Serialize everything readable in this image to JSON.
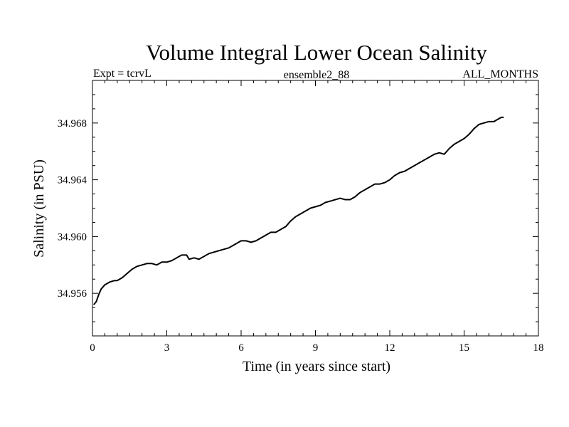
{
  "chart_data": {
    "type": "line",
    "title": "Volume Integral Lower Ocean Salinity",
    "subtitle_left": "Expt = tcrvL",
    "subtitle_center": "ensemble2_88",
    "subtitle_right": "ALL_MONTHS",
    "xlabel": "Time (in years since start)",
    "ylabel": "Salinity (in PSU)",
    "xlim": [
      0,
      18
    ],
    "ylim": [
      34.953,
      34.971
    ],
    "xticks": [
      0,
      3,
      6,
      9,
      12,
      15,
      18
    ],
    "xtick_labels": [
      "0",
      "3",
      "6",
      "9",
      "12",
      "15",
      "18"
    ],
    "yticks": [
      34.956,
      34.96,
      34.964,
      34.968
    ],
    "ytick_labels": [
      "34.956",
      "34.960",
      "34.964",
      "34.968"
    ],
    "grid": false,
    "legend": "none",
    "line_color": "#000000",
    "series": [
      {
        "x": [
          0.05,
          0.15,
          0.25,
          0.35,
          0.5,
          0.7,
          0.9,
          1.0,
          1.2,
          1.4,
          1.6,
          1.8,
          2.0,
          2.2,
          2.4,
          2.6,
          2.8,
          3.0,
          3.2,
          3.4,
          3.6,
          3.8,
          3.9,
          4.1,
          4.3,
          4.5,
          4.7,
          4.9,
          5.1,
          5.3,
          5.5,
          5.7,
          5.9,
          6.0,
          6.2,
          6.4,
          6.6,
          6.8,
          7.0,
          7.2,
          7.4,
          7.6,
          7.8,
          8.0,
          8.2,
          8.4,
          8.6,
          8.8,
          9.0,
          9.2,
          9.4,
          9.6,
          9.8,
          10.0,
          10.2,
          10.4,
          10.6,
          10.8,
          11.0,
          11.2,
          11.4,
          11.6,
          11.8,
          12.0,
          12.2,
          12.4,
          12.6,
          12.8,
          13.0,
          13.2,
          13.4,
          13.6,
          13.8,
          14.0,
          14.2,
          14.4,
          14.6,
          14.8,
          15.0,
          15.2,
          15.4,
          15.6,
          15.8,
          16.0,
          16.2,
          16.4,
          16.5,
          16.6
        ],
        "y": [
          34.9552,
          34.9554,
          34.9559,
          34.9563,
          34.9566,
          34.9568,
          34.9569,
          34.9569,
          34.9571,
          34.9574,
          34.9577,
          34.9579,
          34.958,
          34.9581,
          34.9581,
          34.958,
          34.9582,
          34.9582,
          34.9583,
          34.9585,
          34.9587,
          34.9587,
          34.9584,
          34.9585,
          34.9584,
          34.9586,
          34.9588,
          34.9589,
          34.959,
          34.9591,
          34.9592,
          34.9594,
          34.9596,
          34.9597,
          34.9597,
          34.9596,
          34.9597,
          34.9599,
          34.9601,
          34.9603,
          34.9603,
          34.9605,
          34.9607,
          34.9611,
          34.9614,
          34.9616,
          34.9618,
          34.962,
          34.9621,
          34.9622,
          34.9624,
          34.9625,
          34.9626,
          34.9627,
          34.9626,
          34.9626,
          34.9628,
          34.9631,
          34.9633,
          34.9635,
          34.9637,
          34.9637,
          34.9638,
          34.964,
          34.9643,
          34.9645,
          34.9646,
          34.9648,
          34.965,
          34.9652,
          34.9654,
          34.9656,
          34.9658,
          34.9659,
          34.9658,
          34.9662,
          34.9665,
          34.9667,
          34.9669,
          34.9672,
          34.9676,
          34.9679,
          34.968,
          34.9681,
          34.9681,
          34.9683,
          34.9684,
          34.9684
        ]
      }
    ]
  }
}
